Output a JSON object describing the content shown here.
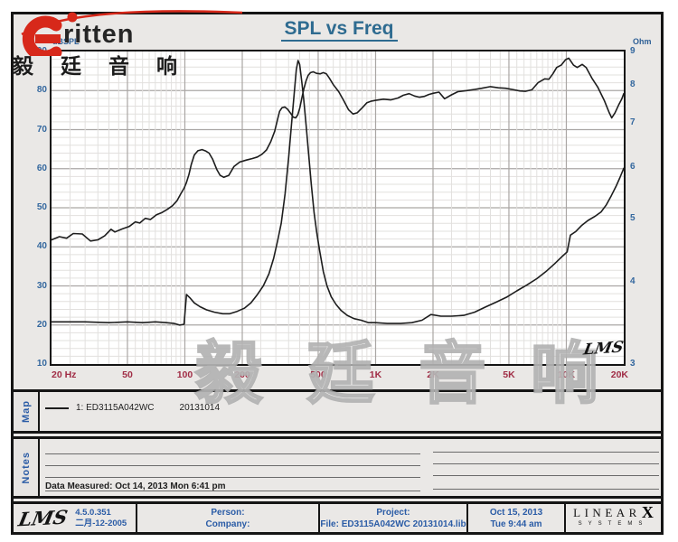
{
  "brand": {
    "logo_text": "ritten",
    "logo_chinese": "毅 廷 音 响",
    "accent_red": "#d7281a"
  },
  "header": {
    "title": "SPL vs Freq"
  },
  "chart": {
    "left_axis_label": "dBSPL",
    "right_axis_label": "Ohm",
    "left_ticks": [
      90,
      80,
      70,
      60,
      50,
      40,
      30,
      20,
      10
    ],
    "right_ticks": [
      9,
      8,
      7,
      6,
      5,
      4,
      3
    ],
    "freq_ticks": [
      {
        "f": 20,
        "label": "20 Hz"
      },
      {
        "f": 50,
        "label": "50"
      },
      {
        "f": 100,
        "label": "100"
      },
      {
        "f": 200,
        "label": "200"
      },
      {
        "f": 500,
        "label": "500"
      },
      {
        "f": 1000,
        "label": "1K"
      },
      {
        "f": 2000,
        "label": "2K"
      },
      {
        "f": 5000,
        "label": "5K"
      },
      {
        "f": 10000,
        "label": "10K"
      },
      {
        "f": 20000,
        "label": "20K"
      }
    ],
    "watermark": "毅 廷 音 响",
    "lms_mark": "LMS",
    "colors": {
      "curve": "#1d1d1d",
      "grid_major": "#aaa6a4",
      "grid_minor": "#e2e0de",
      "tick_blue": "#33679e",
      "freq_red": "#a02c45",
      "title_blue": "#2e6b90"
    }
  },
  "chart_data": {
    "type": "line",
    "title": "SPL vs Freq",
    "x_axis": {
      "label": "Hz",
      "scale": "log",
      "min": 20,
      "max": 20000
    },
    "y_axis_left": {
      "label": "dBSPL",
      "scale": "linear",
      "min": 10,
      "max": 90
    },
    "y_axis_right": {
      "label": "Ohm",
      "scale": "log",
      "min": 3,
      "max": 9
    },
    "series": [
      {
        "name": "SPL (1: ED3115A042WC 20131014)",
        "axis": "left",
        "points": [
          [
            20,
            41.8
          ],
          [
            22,
            42.6
          ],
          [
            24,
            42.2
          ],
          [
            26,
            43.4
          ],
          [
            29,
            43.3
          ],
          [
            32,
            41.5
          ],
          [
            35,
            41.8
          ],
          [
            38,
            42.8
          ],
          [
            41,
            44.5
          ],
          [
            43,
            43.8
          ],
          [
            47,
            44.6
          ],
          [
            51,
            45.2
          ],
          [
            55,
            46.4
          ],
          [
            58,
            46.1
          ],
          [
            62,
            47.3
          ],
          [
            66,
            47.0
          ],
          [
            71,
            48.2
          ],
          [
            76,
            48.8
          ],
          [
            81,
            49.6
          ],
          [
            86,
            50.5
          ],
          [
            91,
            51.8
          ],
          [
            95,
            53.5
          ],
          [
            99,
            55.0
          ],
          [
            102,
            56.5
          ],
          [
            105,
            58.5
          ],
          [
            108,
            61.0
          ],
          [
            112,
            63.5
          ],
          [
            117,
            64.6
          ],
          [
            123,
            64.9
          ],
          [
            129,
            64.5
          ],
          [
            134,
            64.0
          ],
          [
            140,
            62.4
          ],
          [
            147,
            59.8
          ],
          [
            153,
            58.3
          ],
          [
            160,
            57.8
          ],
          [
            170,
            58.3
          ],
          [
            181,
            60.6
          ],
          [
            194,
            61.7
          ],
          [
            210,
            62.2
          ],
          [
            226,
            62.6
          ],
          [
            240,
            63.0
          ],
          [
            254,
            63.7
          ],
          [
            268,
            64.8
          ],
          [
            282,
            66.9
          ],
          [
            296,
            69.6
          ],
          [
            306,
            72.6
          ],
          [
            314,
            74.7
          ],
          [
            323,
            75.6
          ],
          [
            334,
            75.8
          ],
          [
            346,
            75.2
          ],
          [
            358,
            74.2
          ],
          [
            370,
            73.2
          ],
          [
            381,
            73.0
          ],
          [
            391,
            73.8
          ],
          [
            401,
            75.6
          ],
          [
            411,
            78.2
          ],
          [
            421,
            80.5
          ],
          [
            432,
            82.5
          ],
          [
            443,
            83.9
          ],
          [
            456,
            84.6
          ],
          [
            471,
            84.8
          ],
          [
            490,
            84.4
          ],
          [
            512,
            84.3
          ],
          [
            532,
            84.6
          ],
          [
            552,
            84.3
          ],
          [
            572,
            83.2
          ],
          [
            601,
            81.5
          ],
          [
            641,
            79.7
          ],
          [
            681,
            77.4
          ],
          [
            721,
            75.1
          ],
          [
            761,
            74.0
          ],
          [
            801,
            74.3
          ],
          [
            851,
            75.6
          ],
          [
            901,
            76.9
          ],
          [
            951,
            77.3
          ],
          [
            1000,
            77.5
          ],
          [
            1100,
            77.8
          ],
          [
            1200,
            77.6
          ],
          [
            1310,
            78.1
          ],
          [
            1400,
            78.8
          ],
          [
            1500,
            79.2
          ],
          [
            1600,
            78.6
          ],
          [
            1700,
            78.3
          ],
          [
            1800,
            78.5
          ],
          [
            1900,
            79.0
          ],
          [
            2000,
            79.3
          ],
          [
            2150,
            79.6
          ],
          [
            2300,
            77.9
          ],
          [
            2500,
            78.9
          ],
          [
            2700,
            79.7
          ],
          [
            3000,
            80.0
          ],
          [
            3300,
            80.3
          ],
          [
            3600,
            80.6
          ],
          [
            4000,
            81.0
          ],
          [
            4400,
            80.7
          ],
          [
            4800,
            80.6
          ],
          [
            5200,
            80.3
          ],
          [
            5700,
            79.9
          ],
          [
            6100,
            79.8
          ],
          [
            6600,
            80.2
          ],
          [
            7100,
            82.0
          ],
          [
            7700,
            83.0
          ],
          [
            8100,
            82.9
          ],
          [
            8500,
            84.3
          ],
          [
            8900,
            85.9
          ],
          [
            9400,
            86.5
          ],
          [
            9900,
            87.9
          ],
          [
            10300,
            88.3
          ],
          [
            10900,
            86.5
          ],
          [
            11400,
            85.9
          ],
          [
            12100,
            86.7
          ],
          [
            12700,
            85.9
          ],
          [
            13600,
            83.2
          ],
          [
            14600,
            80.9
          ],
          [
            15800,
            77.5
          ],
          [
            16800,
            74.3
          ],
          [
            17300,
            73.0
          ],
          [
            18000,
            74.3
          ],
          [
            18800,
            76.3
          ],
          [
            19500,
            77.8
          ],
          [
            20000,
            79.2
          ]
        ]
      },
      {
        "name": "Impedance (Ohm)",
        "axis": "right",
        "points": [
          [
            20,
            3.48
          ],
          [
            30,
            3.48
          ],
          [
            40,
            3.47
          ],
          [
            50,
            3.48
          ],
          [
            60,
            3.47
          ],
          [
            70,
            3.48
          ],
          [
            80,
            3.47
          ],
          [
            88,
            3.46
          ],
          [
            94,
            3.44
          ],
          [
            99,
            3.45
          ],
          [
            102,
            3.83
          ],
          [
            106,
            3.79
          ],
          [
            112,
            3.72
          ],
          [
            120,
            3.67
          ],
          [
            130,
            3.63
          ],
          [
            143,
            3.6
          ],
          [
            158,
            3.58
          ],
          [
            172,
            3.58
          ],
          [
            188,
            3.61
          ],
          [
            205,
            3.65
          ],
          [
            222,
            3.72
          ],
          [
            240,
            3.83
          ],
          [
            258,
            3.95
          ],
          [
            276,
            4.12
          ],
          [
            292,
            4.35
          ],
          [
            306,
            4.62
          ],
          [
            320,
            4.92
          ],
          [
            335,
            5.45
          ],
          [
            350,
            6.2
          ],
          [
            362,
            6.95
          ],
          [
            374,
            7.75
          ],
          [
            384,
            8.45
          ],
          [
            392,
            8.72
          ],
          [
            400,
            8.6
          ],
          [
            410,
            8.1
          ],
          [
            420,
            7.6
          ],
          [
            432,
            6.95
          ],
          [
            445,
            6.3
          ],
          [
            460,
            5.65
          ],
          [
            476,
            5.1
          ],
          [
            492,
            4.75
          ],
          [
            510,
            4.45
          ],
          [
            532,
            4.15
          ],
          [
            556,
            3.95
          ],
          [
            585,
            3.8
          ],
          [
            620,
            3.7
          ],
          [
            660,
            3.62
          ],
          [
            710,
            3.56
          ],
          [
            770,
            3.52
          ],
          [
            840,
            3.5
          ],
          [
            920,
            3.47
          ],
          [
            1000,
            3.47
          ],
          [
            1150,
            3.46
          ],
          [
            1350,
            3.46
          ],
          [
            1550,
            3.47
          ],
          [
            1750,
            3.5
          ],
          [
            1950,
            3.57
          ],
          [
            2200,
            3.55
          ],
          [
            2500,
            3.55
          ],
          [
            2900,
            3.56
          ],
          [
            3300,
            3.6
          ],
          [
            3800,
            3.67
          ],
          [
            4300,
            3.73
          ],
          [
            4900,
            3.8
          ],
          [
            5500,
            3.88
          ],
          [
            6200,
            3.96
          ],
          [
            7000,
            4.05
          ],
          [
            7800,
            4.15
          ],
          [
            8700,
            4.27
          ],
          [
            9600,
            4.39
          ],
          [
            10100,
            4.45
          ],
          [
            10500,
            4.72
          ],
          [
            11200,
            4.78
          ],
          [
            12000,
            4.88
          ],
          [
            13000,
            4.97
          ],
          [
            14100,
            5.04
          ],
          [
            15200,
            5.12
          ],
          [
            16200,
            5.25
          ],
          [
            17200,
            5.42
          ],
          [
            18200,
            5.6
          ],
          [
            19100,
            5.78
          ],
          [
            20000,
            5.97
          ]
        ]
      }
    ]
  },
  "map_section": {
    "sidebar_label": "Map",
    "legend_label": "1: ED3115A042WC",
    "legend_date": "20131014"
  },
  "notes_section": {
    "sidebar_label": "Notes",
    "data_measured": "Data Measured: Oct 14, 2013  Mon  6:41 pm"
  },
  "footer": {
    "lms_logo": "LMS",
    "version": "4.5.0.351",
    "version_date": "二月-12-2005",
    "person_label": "Person:",
    "company_label": "Company:",
    "project_label": "Project:",
    "file_label": "File: ED3115A042WC 20131014.lib",
    "print_date": "Oct 15, 2013",
    "print_time": "Tue  9:44 am",
    "linearx_letters": "LINEAR",
    "linearx_x": "X",
    "linearx_sub": "SYSTEMS"
  }
}
